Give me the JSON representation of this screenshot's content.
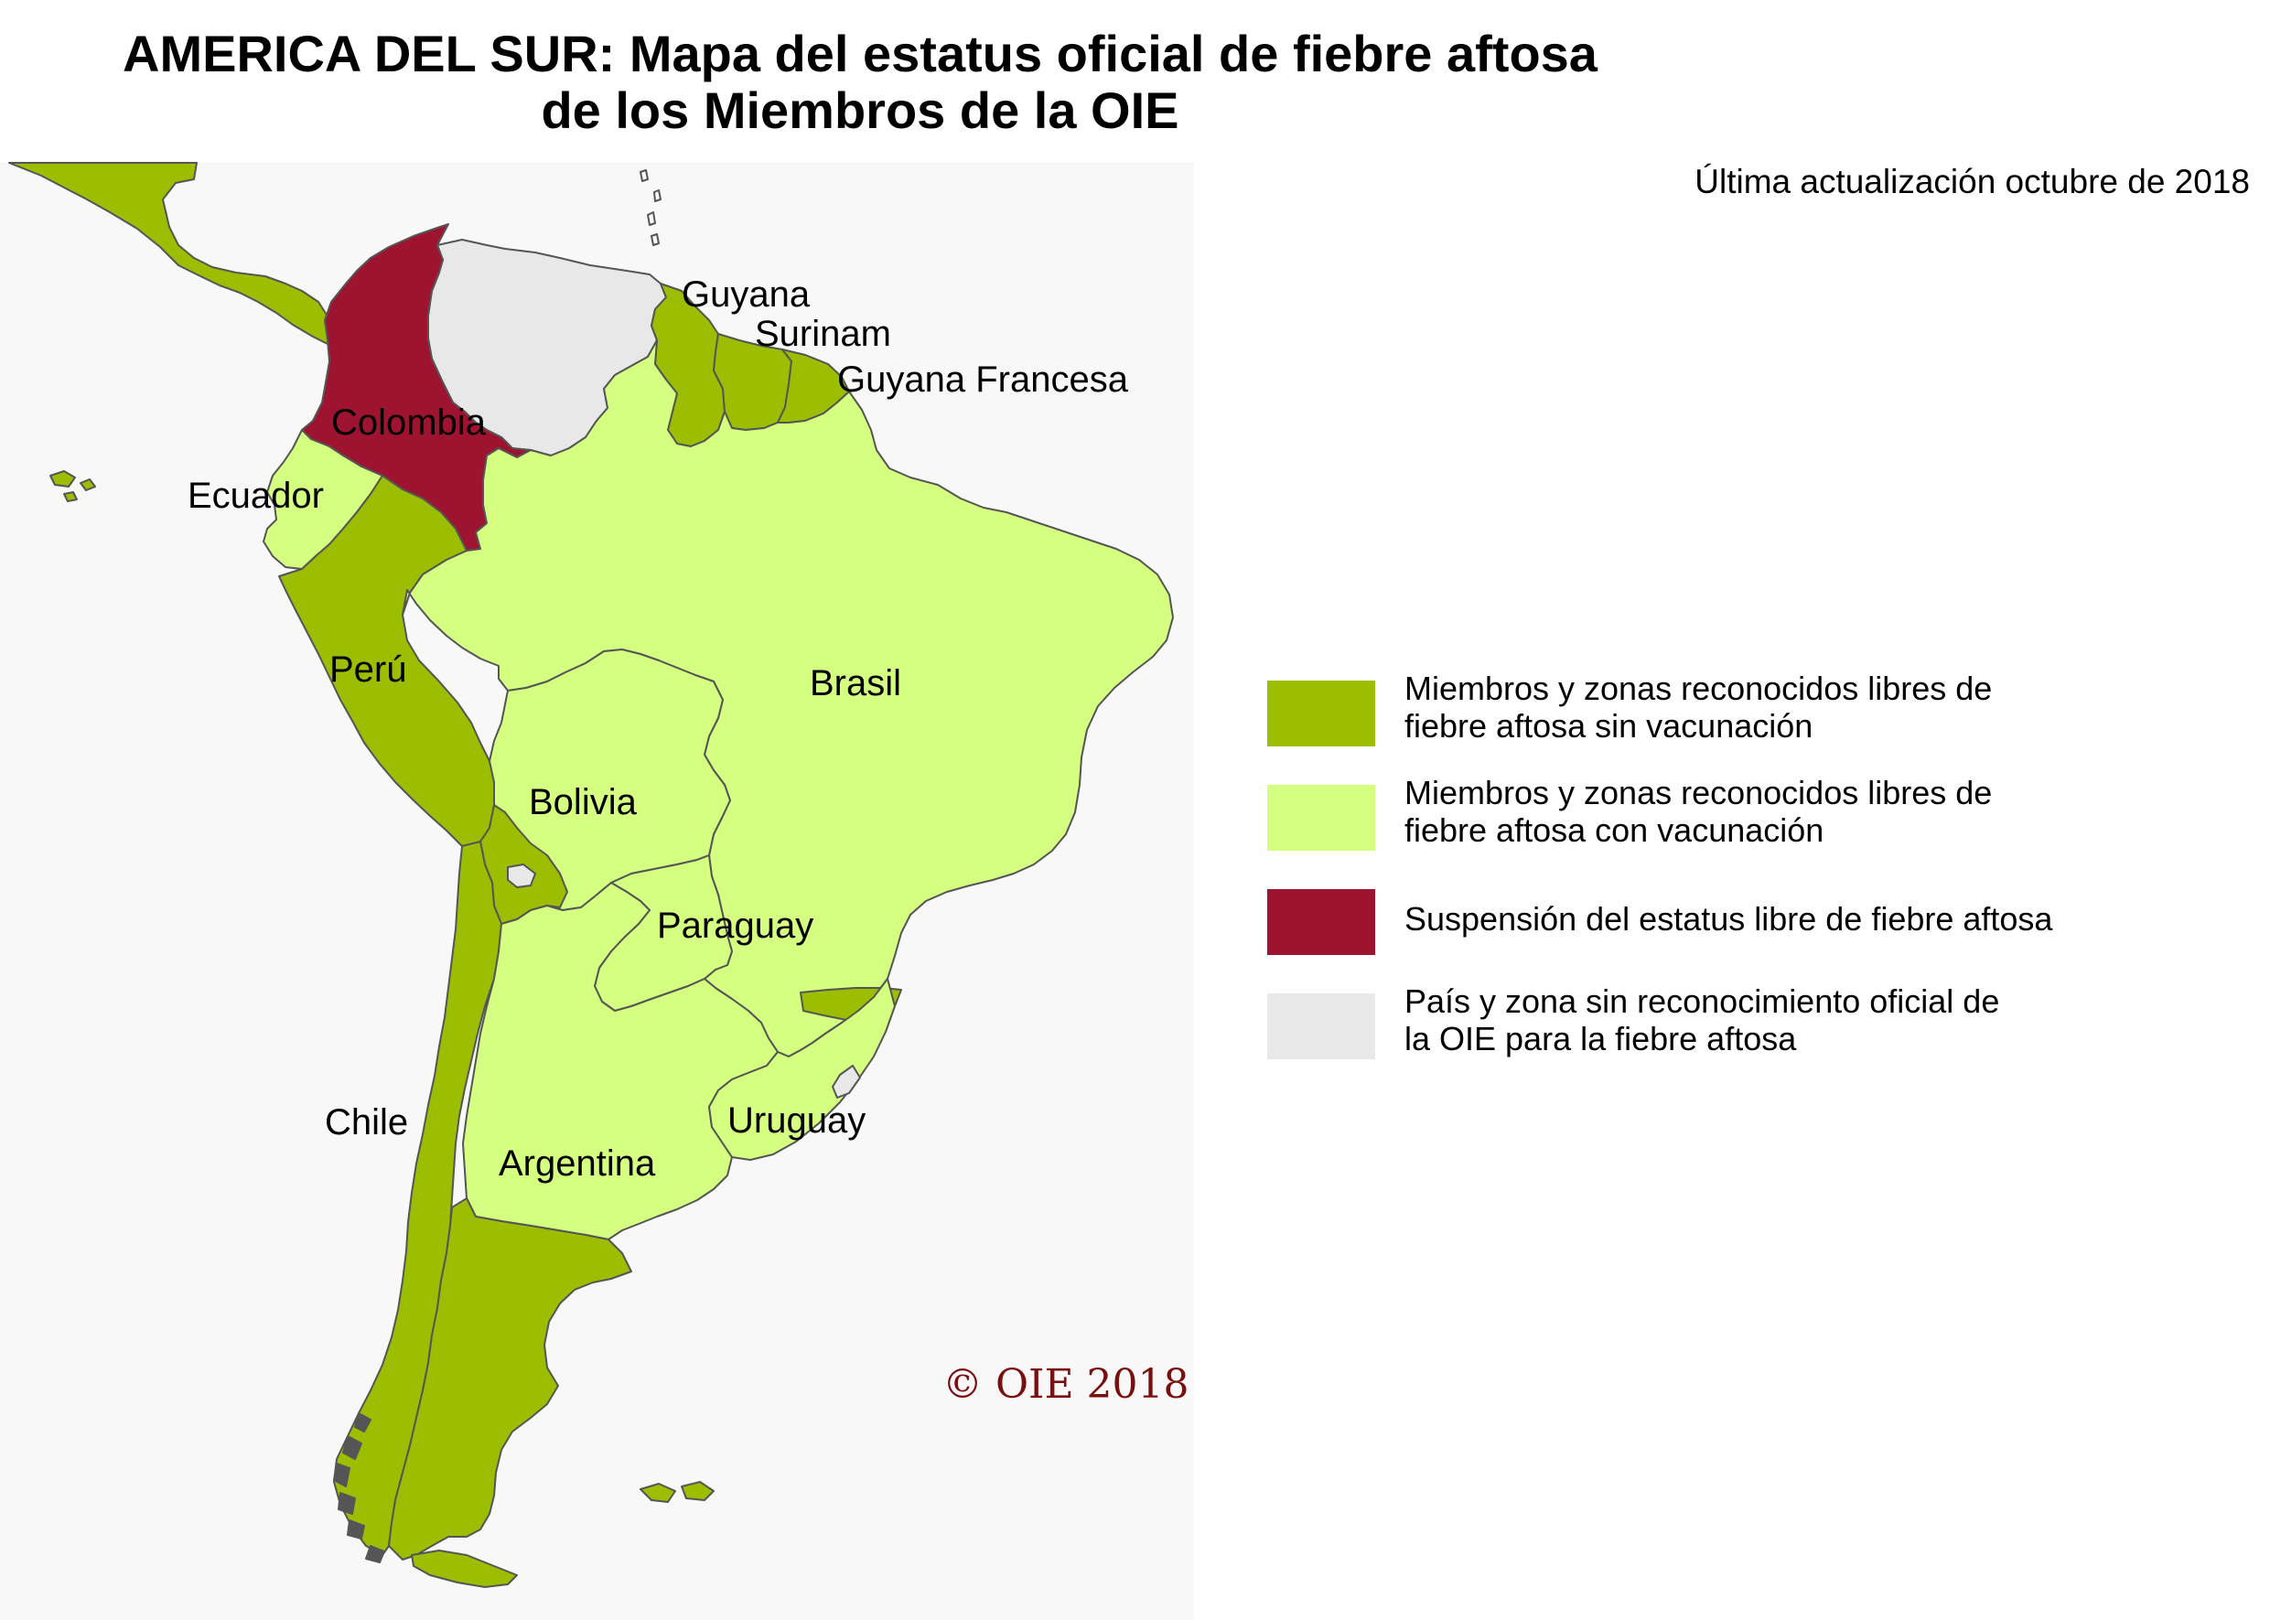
{
  "title": {
    "line1": "AMERICA DEL SUR: Mapa del estatus oficial de fiebre aftosa",
    "line2": "de los Miembros de la OIE"
  },
  "updated": "Última actualización octubre de 2018",
  "copyright": "© OIE 2018",
  "colors": {
    "free_without_vaccination": "#9bbf00",
    "free_with_vaccination": "#d4ff80",
    "suspended": "#9e1430",
    "no_recognition": "#e8e8e8",
    "border": "#555555",
    "copyright": "#7a0f0f"
  },
  "countries": {
    "guyana": "Guyana",
    "surinam": "Surinam",
    "guyana_francesa": "Guyana Francesa",
    "colombia": "Colombia",
    "ecuador": "Ecuador",
    "peru": "Perú",
    "brasil": "Brasil",
    "bolivia": "Bolivia",
    "paraguay": "Paraguay",
    "chile": "Chile",
    "argentina": "Argentina",
    "uruguay": "Uruguay"
  },
  "legend": [
    {
      "status": "free_without_vaccination",
      "line1": "Miembros y zonas reconocidos libres de",
      "line2": "fiebre aftosa sin vacunación"
    },
    {
      "status": "free_with_vaccination",
      "line1": "Miembros y zonas reconocidos libres de",
      "line2": "fiebre aftosa con vacunación"
    },
    {
      "status": "suspended",
      "line1": "Suspensión del estatus libre de fiebre aftosa",
      "line2": ""
    },
    {
      "status": "no_recognition",
      "line1": "País y zona sin reconocimiento oficial de",
      "line2": "la OIE para la fiebre aftosa"
    }
  ]
}
